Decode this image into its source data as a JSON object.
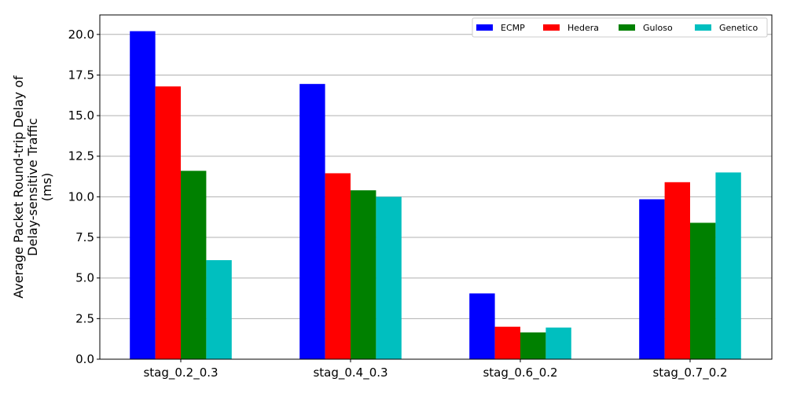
{
  "chart_data": {
    "type": "bar",
    "categories": [
      "stag_0.2_0.3",
      "stag_0.4_0.3",
      "stag_0.6_0.2",
      "stag_0.7_0.2"
    ],
    "series": [
      {
        "name": "ECMP",
        "color": "#0000ff",
        "values": [
          20.2,
          16.95,
          4.05,
          9.85
        ]
      },
      {
        "name": "Hedera",
        "color": "#ff0000",
        "values": [
          16.8,
          11.45,
          2.0,
          10.9
        ]
      },
      {
        "name": "Guloso",
        "color": "#008000",
        "values": [
          11.6,
          10.4,
          1.65,
          8.4
        ]
      },
      {
        "name": "Genetico",
        "color": "#00bfbf",
        "values": [
          6.1,
          10.0,
          1.95,
          11.5
        ]
      }
    ],
    "ylabel_lines": [
      "Average Packet Round-trip Delay of",
      "Delay-sensitive Traffic",
      "(ms)"
    ],
    "ylim": [
      0,
      21.2
    ],
    "yticks": [
      "0.0",
      "2.5",
      "5.0",
      "7.5",
      "10.0",
      "12.5",
      "15.0",
      "17.5",
      "20.0"
    ],
    "grid": "horizontal",
    "legend_position": "top-right"
  }
}
